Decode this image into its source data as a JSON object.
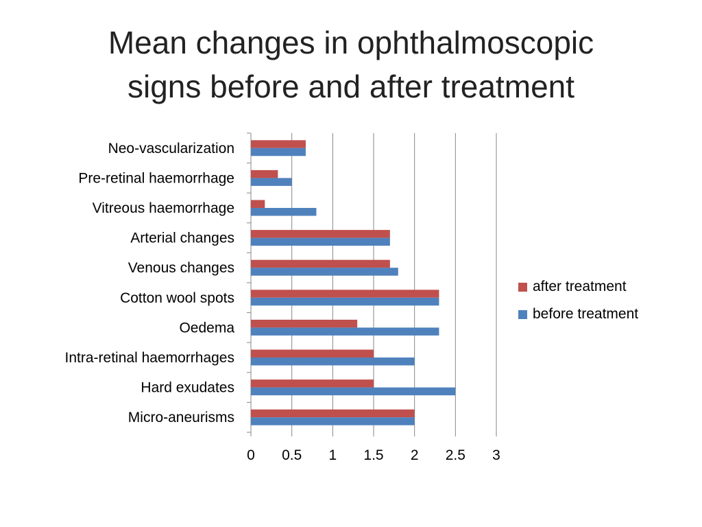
{
  "title_line1": "Mean changes in ophthalmoscopic",
  "title_line2": "signs before and after treatment",
  "chart_data": {
    "type": "bar",
    "orientation": "horizontal",
    "categories": [
      "Neo-vascularization",
      "Pre-retinal haemorrhage",
      "Vitreous haemorrhage",
      "Arterial changes",
      "Venous changes",
      "Cotton wool spots",
      "Oedema",
      "Intra-retinal haemorrhages",
      "Hard exudates",
      "Micro-aneurisms"
    ],
    "series": [
      {
        "name": "after treatment",
        "color": "#C0504D",
        "values": [
          0.67,
          0.33,
          0.17,
          1.7,
          1.7,
          2.3,
          1.3,
          1.5,
          1.5,
          2.0
        ]
      },
      {
        "name": "before treatment",
        "color": "#4F81BD",
        "values": [
          0.67,
          0.5,
          0.8,
          1.7,
          1.8,
          2.3,
          2.3,
          2.0,
          2.5,
          2.0
        ]
      }
    ],
    "xlim": [
      0,
      3
    ],
    "xticks": [
      "0",
      "0.5",
      "1",
      "1.5",
      "2",
      "2.5",
      "3"
    ],
    "grid": "vertical",
    "legend_position": "right"
  }
}
